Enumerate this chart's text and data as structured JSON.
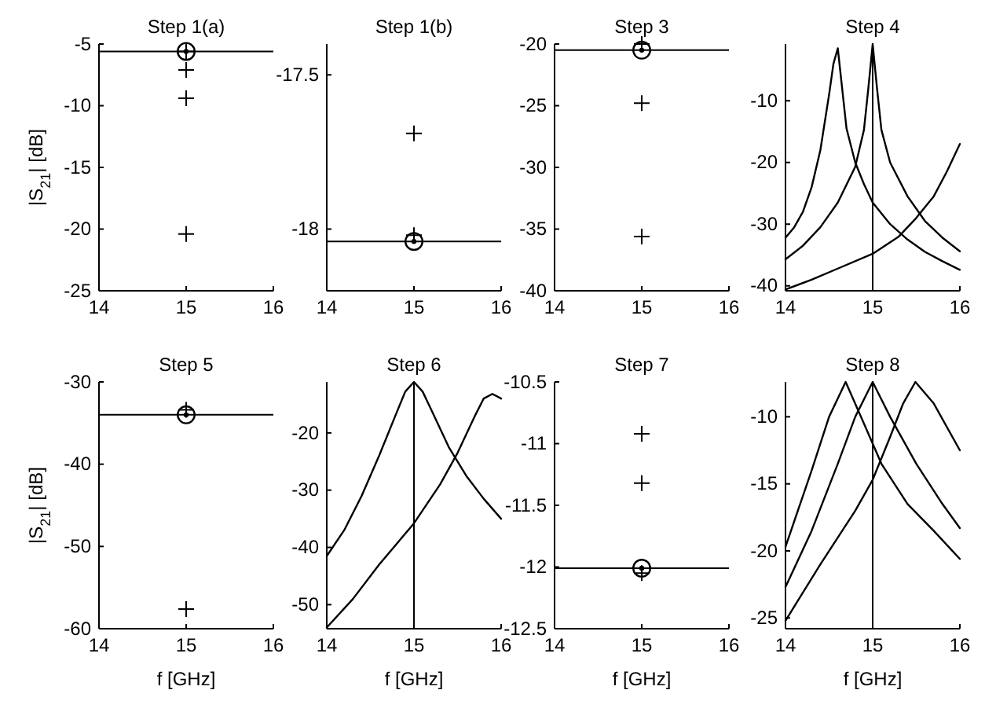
{
  "chart_data": [
    {
      "type": "scatter",
      "title": "Step 1(a)",
      "ylabel": "|S$_{21}$| [dB]",
      "xlim": [
        14,
        16
      ],
      "xticks": [
        14,
        15,
        16
      ],
      "ylim": [
        -25,
        -5
      ],
      "yticks": [
        -25,
        -20,
        -15,
        -10,
        -5
      ],
      "grid": false,
      "series": [
        {
          "marker": "cross",
          "color": "#000000",
          "x": [
            15,
            15,
            15,
            15
          ],
          "values": [
            -5.6,
            -7.1,
            -9.4,
            -20.4
          ]
        },
        {
          "marker": "circle",
          "color": "#000000",
          "x": [
            15
          ],
          "values": [
            -5.6
          ]
        }
      ],
      "ref_lines": [
        {
          "axis": "y",
          "value": -5.6
        }
      ]
    },
    {
      "type": "scatter",
      "title": "Step 1(b)",
      "xlim": [
        14,
        16
      ],
      "xticks": [
        14,
        15,
        16
      ],
      "ylim": [
        -18.2,
        -17.4
      ],
      "yticks": [
        -18,
        -17.5
      ],
      "grid": false,
      "series": [
        {
          "marker": "cross",
          "color": "#000000",
          "x": [
            15,
            15
          ],
          "values": [
            -17.69,
            -18.02
          ]
        },
        {
          "marker": "circle",
          "color": "#000000",
          "x": [
            15
          ],
          "values": [
            -18.04
          ]
        }
      ],
      "ref_lines": [
        {
          "axis": "y",
          "value": -18.04
        }
      ]
    },
    {
      "type": "scatter",
      "title": "Step 3",
      "xlim": [
        14,
        16
      ],
      "xticks": [
        14,
        15,
        16
      ],
      "ylim": [
        -40,
        -20
      ],
      "yticks": [
        -40,
        -35,
        -30,
        -25,
        -20
      ],
      "grid": false,
      "series": [
        {
          "marker": "circle",
          "color": "#000000",
          "x": [
            15
          ],
          "values": [
            -20.5
          ]
        },
        {
          "marker": "cross",
          "color": "#000000",
          "x": [
            15,
            15,
            15
          ],
          "values": [
            -20,
            -24.8,
            -35.6
          ]
        }
      ],
      "ref_lines": [
        {
          "axis": "y",
          "value": -20.5
        }
      ]
    },
    {
      "type": "line",
      "title": "Step 4",
      "xlim": [
        14,
        16
      ],
      "xticks": [
        14,
        15,
        16
      ],
      "ylim": [
        -40.8,
        -0.8
      ],
      "yticks": [
        -40,
        -30,
        -20,
        -10
      ],
      "grid": false,
      "series": [
        {
          "color": "#000000",
          "x": [
            14,
            14.1,
            14.2,
            14.3,
            14.4,
            14.5,
            14.55,
            14.6,
            14.65,
            14.7,
            14.8,
            14.9,
            15,
            15.2,
            15.4,
            15.6,
            15.8,
            16
          ],
          "values": [
            -32.2,
            -30.5,
            -28,
            -24,
            -18,
            -9,
            -4,
            -1.5,
            -8,
            -14.5,
            -20,
            -23.5,
            -26.5,
            -30,
            -32.5,
            -34.5,
            -36,
            -37.4
          ]
        },
        {
          "color": "#000000",
          "x": [
            14,
            14.2,
            14.4,
            14.6,
            14.8,
            14.9,
            14.95,
            15,
            15.05,
            15.1,
            15.2,
            15.4,
            15.6,
            15.8,
            16
          ],
          "values": [
            -35.7,
            -33.5,
            -30.5,
            -26.5,
            -20.7,
            -14.7,
            -8,
            -0.8,
            -8,
            -14.7,
            -20,
            -25.5,
            -29.5,
            -32.2,
            -34.4
          ]
        },
        {
          "color": "#000000",
          "x": [
            14,
            14.3,
            14.6,
            15,
            15.3,
            15.5,
            15.7,
            15.85,
            16
          ],
          "values": [
            -40.6,
            -39,
            -37.2,
            -34.8,
            -32,
            -29,
            -25.5,
            -21.5,
            -17
          ]
        }
      ],
      "ref_lines": [
        {
          "axis": "x",
          "value": 15
        }
      ]
    },
    {
      "type": "scatter",
      "title": "Step 5",
      "ylabel": "|S$_{21}$| [dB]",
      "xlabel": "f [GHz]",
      "xlim": [
        14,
        16
      ],
      "xticks": [
        14,
        15,
        16
      ],
      "ylim": [
        -60,
        -30
      ],
      "yticks": [
        -60,
        -50,
        -40,
        -30
      ],
      "grid": false,
      "series": [
        {
          "marker": "cross",
          "color": "#000000",
          "x": [
            15,
            15
          ],
          "values": [
            -33.4,
            -57.6
          ]
        },
        {
          "marker": "circle",
          "color": "#000000",
          "x": [
            15
          ],
          "values": [
            -34
          ]
        }
      ],
      "ref_lines": [
        {
          "axis": "y",
          "value": -34
        }
      ]
    },
    {
      "type": "line",
      "title": "Step 6",
      "xlabel": "f [GHz]",
      "xlim": [
        14,
        16
      ],
      "xticks": [
        14,
        15,
        16
      ],
      "ylim": [
        -54.2,
        -11.1
      ],
      "yticks": [
        -50,
        -40,
        -30,
        -20
      ],
      "grid": false,
      "series": [
        {
          "color": "#000000",
          "x": [
            14,
            14.2,
            14.4,
            14.6,
            14.8,
            14.9,
            15,
            15.1,
            15.2,
            15.4,
            15.6,
            15.8,
            16
          ],
          "values": [
            -41.5,
            -37,
            -31,
            -24,
            -16.5,
            -12.8,
            -11.1,
            -12.8,
            -16,
            -22.5,
            -27.5,
            -31.5,
            -35
          ]
        },
        {
          "color": "#000000",
          "x": [
            14,
            14.3,
            14.6,
            15,
            15.3,
            15.5,
            15.7,
            15.8,
            15.9,
            16
          ],
          "values": [
            -54,
            -49,
            -43,
            -35.8,
            -29,
            -23.5,
            -17,
            -14,
            -13.2,
            -14
          ]
        }
      ],
      "ref_lines": [
        {
          "axis": "x",
          "value": 15
        }
      ]
    },
    {
      "type": "scatter",
      "title": "Step 7",
      "xlabel": "f [GHz]",
      "xlim": [
        14,
        16
      ],
      "xticks": [
        14,
        15,
        16
      ],
      "ylim": [
        -12.5,
        -10.5
      ],
      "yticks": [
        -12.5,
        -12,
        -11.5,
        -11,
        -10.5
      ],
      "grid": false,
      "series": [
        {
          "marker": "cross",
          "color": "#000000",
          "x": [
            15,
            15,
            15
          ],
          "values": [
            -10.92,
            -11.32,
            -12.05
          ]
        },
        {
          "marker": "circle",
          "color": "#000000",
          "x": [
            15
          ],
          "values": [
            -12.01
          ]
        }
      ],
      "ref_lines": [
        {
          "axis": "y",
          "value": -12.01
        }
      ]
    },
    {
      "type": "line",
      "title": "Step 8",
      "xlabel": "f [GHz]",
      "xlim": [
        14,
        16
      ],
      "xticks": [
        14,
        15,
        16
      ],
      "ylim": [
        -25.8,
        -7.4
      ],
      "yticks": [
        -25,
        -20,
        -15,
        -10
      ],
      "grid": false,
      "series": [
        {
          "color": "#000000",
          "x": [
            14,
            14.3,
            14.5,
            14.69,
            14.9,
            15.1,
            15.4,
            15.7,
            16
          ],
          "values": [
            -19.7,
            -14,
            -10,
            -7.4,
            -10.5,
            -13.5,
            -16.5,
            -18.5,
            -20.6
          ]
        },
        {
          "color": "#000000",
          "x": [
            14,
            14.3,
            14.6,
            14.8,
            15,
            15.2,
            15.5,
            15.8,
            16
          ],
          "values": [
            -22.7,
            -18.5,
            -13.5,
            -10,
            -7.4,
            -10,
            -13.5,
            -16.5,
            -18.3
          ]
        },
        {
          "color": "#000000",
          "x": [
            14,
            14.4,
            14.8,
            15,
            15.2,
            15.35,
            15.49,
            15.7,
            16
          ],
          "values": [
            -25.2,
            -21,
            -17,
            -14.7,
            -11.5,
            -9,
            -7.4,
            -9,
            -12.5
          ]
        }
      ],
      "ref_lines": [
        {
          "axis": "x",
          "value": 15
        }
      ]
    }
  ]
}
